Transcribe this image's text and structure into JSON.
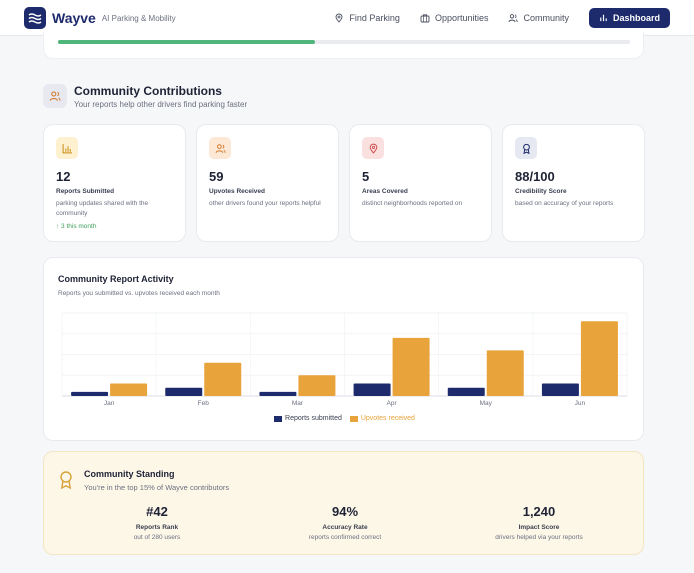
{
  "header": {
    "brand": "Wayve",
    "tagline": "AI Parking & Mobility",
    "nav": [
      {
        "label": "Find Parking",
        "icon": "map-pin-icon"
      },
      {
        "label": "Opportunities",
        "icon": "briefcase-icon"
      },
      {
        "label": "Community",
        "icon": "users-icon"
      }
    ],
    "cta": {
      "label": "Dashboard",
      "icon": "bar-chart-icon"
    }
  },
  "progress": {
    "fraction": 0.45,
    "color": "#4fb57a"
  },
  "section": {
    "title": "Community Contributions",
    "subtitle": "Your reports help other drivers find parking faster"
  },
  "stats": [
    {
      "value": "12",
      "label": "Reports Submitted",
      "desc": "parking updates shared with the community",
      "trend": "↑ 3 this month",
      "icon": "bar-chart-icon",
      "icon_bg": "#fdf1cf",
      "icon_color": "#c98a12"
    },
    {
      "value": "59",
      "label": "Upvotes Received",
      "desc": "other drivers found your reports helpful",
      "icon": "users-icon",
      "icon_bg": "#fde8d6",
      "icon_color": "#d07a2c"
    },
    {
      "value": "5",
      "label": "Areas Covered",
      "desc": "distinct neighborhoods reported on",
      "icon": "map-pin-icon",
      "icon_bg": "#fbe0e0",
      "icon_color": "#cf4b4b"
    },
    {
      "value": "88/100",
      "label": "Credibility Score",
      "desc": "based on accuracy of your reports",
      "icon": "award-icon",
      "icon_bg": "#e6e8f2",
      "icon_color": "#1d2a6b"
    }
  ],
  "chart_data": {
    "type": "bar",
    "title": "Community Report Activity",
    "subtitle": "Reports you submitted vs. upvotes received each month",
    "categories": [
      "Jan",
      "Feb",
      "Mar",
      "Apr",
      "May",
      "Jun"
    ],
    "series": [
      {
        "name": "Reports submitted",
        "values": [
          1,
          2,
          1,
          3,
          2,
          3
        ],
        "color": "#1d2a6b"
      },
      {
        "name": "Upvotes received",
        "values": [
          3,
          8,
          5,
          14,
          11,
          18
        ],
        "color": "#e8a33a"
      }
    ],
    "ylim": [
      0,
      20
    ],
    "grid": true,
    "legend": "bottom"
  },
  "standing": {
    "title": "Community Standing",
    "subtitle": "You're in the top 15% of Wayve contributors",
    "metrics": [
      {
        "value": "#42",
        "label": "Reports Rank",
        "desc": "out of 280 users"
      },
      {
        "value": "94%",
        "label": "Accuracy Rate",
        "desc": "reports confirmed correct"
      },
      {
        "value": "1,240",
        "label": "Impact Score",
        "desc": "drivers helped via your reports"
      }
    ]
  }
}
